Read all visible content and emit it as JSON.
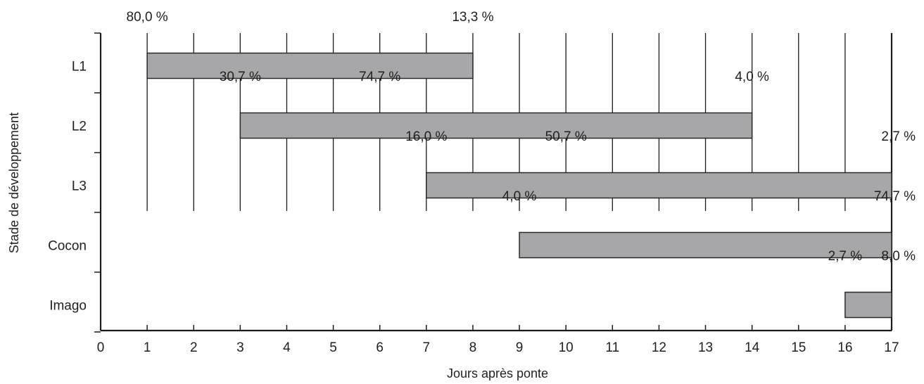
{
  "chart_data": {
    "type": "bar",
    "orientation": "horizontal",
    "subtype": "range",
    "xlabel": "Jours après ponte",
    "ylabel": "Stade de développement",
    "xlim": [
      0,
      17
    ],
    "x_ticks": [
      "0",
      "1",
      "2",
      "3",
      "4",
      "5",
      "6",
      "7",
      "8",
      "9",
      "10",
      "11",
      "12",
      "13",
      "14",
      "15",
      "16",
      "17"
    ],
    "grid": "vertical lines at each day within the top region",
    "colors": {
      "bar_fill": "#a7a7a9",
      "bar_stroke": "#2a2a2a",
      "axis": "#1a1a1a",
      "grid": "#1a1a1a"
    },
    "categories": [
      "L1",
      "L2",
      "L3",
      "Cocon",
      "Imago"
    ],
    "bars": [
      {
        "category": "L1",
        "start": 1,
        "end": 8
      },
      {
        "category": "L2",
        "start": 3,
        "end": 14
      },
      {
        "category": "L3",
        "start": 7,
        "end": 17
      },
      {
        "category": "Cocon",
        "start": 9,
        "end": 17
      },
      {
        "category": "Imago",
        "start": 16,
        "end": 17
      }
    ],
    "annotations": [
      {
        "category": "L1",
        "x": 1,
        "text": "80,0 %"
      },
      {
        "category": "L1",
        "x": 8,
        "text": "13,3 %"
      },
      {
        "category": "L2",
        "x": 3,
        "text": "30,7 %"
      },
      {
        "category": "L2",
        "x": 6,
        "text": "74,7 %"
      },
      {
        "category": "L2",
        "x": 14,
        "text": "4,0  %"
      },
      {
        "category": "L3",
        "x": 7,
        "text": "16,0 %"
      },
      {
        "category": "L3",
        "x": 10,
        "text": "50,7 %"
      },
      {
        "category": "L3",
        "x": 17,
        "text": "2,7 %"
      },
      {
        "category": "Cocon",
        "x": 9,
        "text": "4,0 %"
      },
      {
        "category": "Cocon",
        "x": 17,
        "text": "74,7 %"
      },
      {
        "category": "Imago",
        "x": 16,
        "text": "2,7 %"
      },
      {
        "category": "Imago",
        "x": 17,
        "text": "8,0 %"
      }
    ]
  }
}
